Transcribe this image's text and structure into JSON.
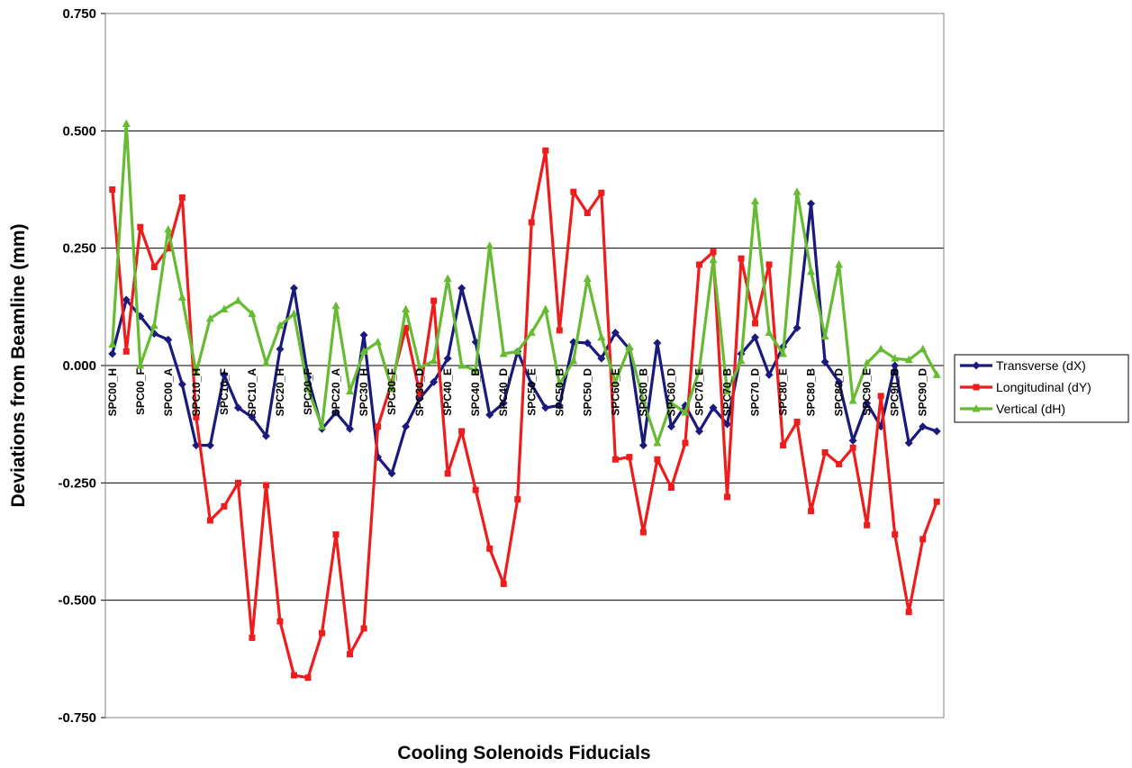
{
  "chart_data": {
    "type": "line",
    "title": "",
    "xlabel": "Cooling Solenoids Fiducials",
    "ylabel": "Deviations from Beamline (mm)",
    "ylim": [
      -0.75,
      0.75
    ],
    "y_ticks": [
      "0.750",
      "0.500",
      "0.250",
      "0.000",
      "-0.250",
      "-0.500",
      "-0.750"
    ],
    "y_tick_values": [
      0.75,
      0.5,
      0.25,
      0,
      -0.25,
      -0.5,
      -0.75
    ],
    "grid": "horizontal",
    "legend_position": "right",
    "x_tick_labels": [
      "SPC00_H",
      "SPC00_F",
      "SPC00_A",
      "SPC10_H",
      "SPC10_F",
      "SPC10_A",
      "SPC20_H",
      "SPC20_F",
      "SPC20_A",
      "SPC30_H",
      "SPC30_F",
      "SPC30_D",
      "SPC40_E",
      "SPC40_B",
      "SPC40_D",
      "SPC50_E",
      "SPC50_B",
      "SPC50_D",
      "SPC60_E",
      "SPC60_B",
      "SPC60_D",
      "SPC70_E",
      "SPC70_B",
      "SPC70_D",
      "SPC80_E",
      "SPC80_B",
      "SPC80_D",
      "SPC90_E",
      "SPC90_B",
      "SPC90_D"
    ],
    "series": [
      {
        "name": "Transverse (dX)",
        "color": "#1a1a7e",
        "marker": "diamond",
        "values": [
          0.025,
          0.14,
          0.105,
          0.068,
          0.055,
          -0.04,
          -0.17,
          -0.17,
          -0.02,
          -0.09,
          -0.11,
          -0.15,
          0.035,
          0.165,
          -0.025,
          -0.135,
          -0.1,
          -0.135,
          0.065,
          -0.195,
          -0.23,
          -0.13,
          -0.07,
          -0.035,
          0.015,
          0.165,
          0.05,
          -0.105,
          -0.08,
          0.03,
          -0.04,
          -0.09,
          -0.085,
          0.05,
          0.048,
          0.015,
          0.07,
          0.035,
          -0.17,
          0.048,
          -0.13,
          -0.085,
          -0.14,
          -0.09,
          -0.125,
          0.025,
          0.06,
          -0.02,
          0.04,
          0.08,
          0.345,
          0.008,
          -0.035,
          -0.16,
          -0.08,
          -0.13,
          0.0,
          -0.165,
          -0.13,
          -0.14
        ]
      },
      {
        "name": "Longitudinal (dY)",
        "color": "#ee1c1c",
        "marker": "square",
        "values": [
          0.375,
          0.03,
          0.295,
          0.21,
          0.25,
          0.358,
          -0.11,
          -0.33,
          -0.3,
          -0.25,
          -0.58,
          -0.255,
          -0.545,
          -0.66,
          -0.665,
          -0.57,
          -0.36,
          -0.615,
          -0.56,
          -0.13,
          -0.035,
          0.08,
          -0.06,
          0.138,
          -0.23,
          -0.14,
          -0.265,
          -0.39,
          -0.465,
          -0.285,
          0.305,
          0.458,
          0.075,
          0.37,
          0.325,
          0.368,
          -0.2,
          -0.195,
          -0.355,
          -0.2,
          -0.26,
          -0.165,
          0.215,
          0.242,
          -0.28,
          0.228,
          0.09,
          0.215,
          -0.17,
          -0.12,
          -0.31,
          -0.185,
          -0.21,
          -0.175,
          -0.34,
          -0.065,
          -0.36,
          -0.525,
          -0.37,
          -0.29
        ]
      },
      {
        "name": "Vertical (dH)",
        "color": "#66bb33",
        "marker": "triangle",
        "values": [
          0.045,
          0.515,
          0.0,
          0.085,
          0.29,
          0.145,
          -0.015,
          0.1,
          0.12,
          0.138,
          0.11,
          0.005,
          0.085,
          0.11,
          -0.05,
          -0.13,
          0.127,
          -0.055,
          0.03,
          0.05,
          -0.05,
          0.12,
          -0.005,
          0.01,
          0.185,
          0.0,
          -0.01,
          0.255,
          0.025,
          0.03,
          0.07,
          0.12,
          -0.04,
          0.01,
          0.185,
          0.06,
          -0.035,
          0.04,
          -0.075,
          -0.165,
          -0.08,
          -0.1,
          -0.01,
          0.225,
          -0.055,
          0.01,
          0.35,
          0.07,
          0.025,
          0.37,
          0.2,
          0.062,
          0.215,
          -0.075,
          0.005,
          0.035,
          0.015,
          0.012,
          0.035,
          -0.02
        ]
      }
    ]
  }
}
